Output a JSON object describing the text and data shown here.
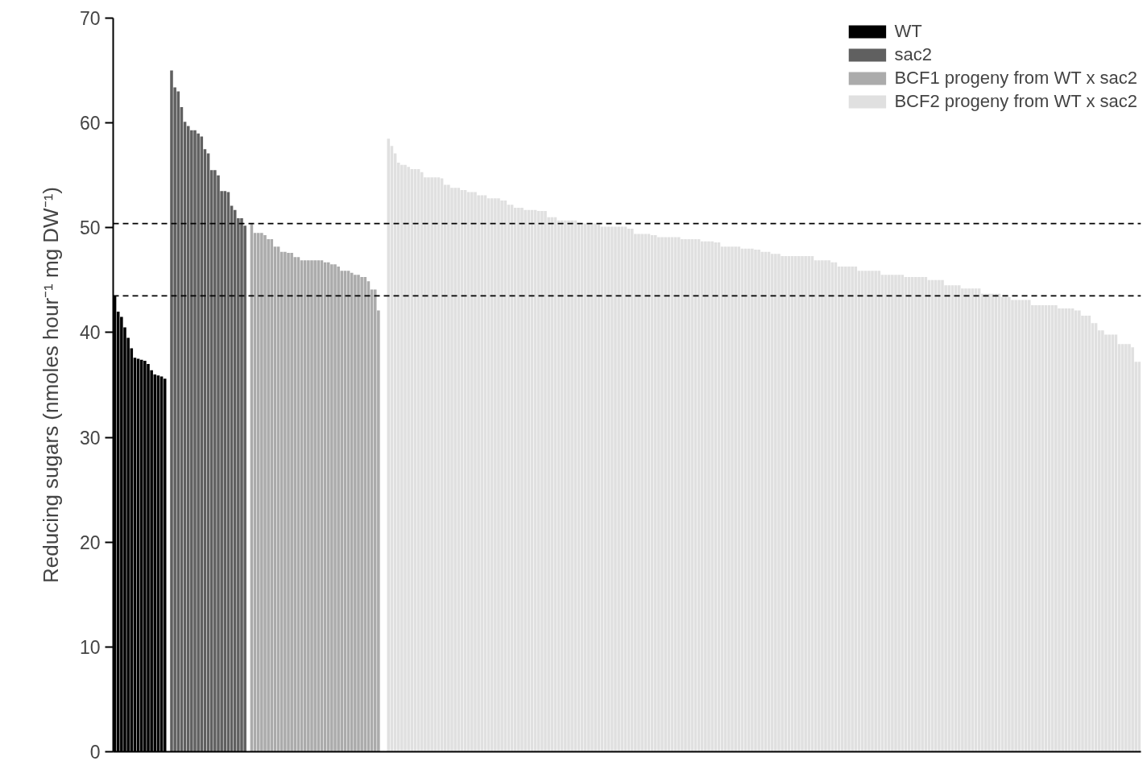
{
  "chart_data": {
    "type": "bar",
    "ylabel": "Reducing sugars (nmoles hour⁻¹ mg DW⁻¹)",
    "categories": [
      null,
      null,
      null,
      null,
      null,
      null,
      null,
      null,
      null,
      null,
      null,
      null,
      null,
      null,
      null,
      null,
      null,
      null,
      null,
      null,
      null,
      null,
      null,
      null,
      null,
      null,
      null,
      null,
      null,
      null,
      null,
      null,
      null,
      null,
      null,
      null,
      null,
      null,
      null,
      null,
      null,
      null,
      null,
      null,
      null,
      null,
      null,
      null,
      null,
      null,
      null,
      null,
      null,
      null,
      null,
      null,
      null,
      null,
      null,
      null,
      null,
      null,
      null,
      null,
      null,
      null,
      null,
      null,
      null,
      null,
      null,
      null,
      null,
      null,
      null,
      null,
      null,
      null,
      null,
      null,
      null,
      null,
      null,
      null,
      null,
      null,
      null,
      null,
      null,
      null,
      null,
      null,
      null,
      null,
      null,
      null,
      null,
      null,
      null,
      null,
      null,
      null,
      null,
      null,
      null,
      null,
      null,
      null,
      null,
      null,
      null,
      null,
      null,
      null,
      null,
      null,
      null,
      null,
      null,
      null,
      null,
      null,
      null,
      null,
      null,
      null,
      null,
      null,
      null,
      null,
      null,
      null,
      null,
      null,
      null,
      null,
      null,
      null,
      null,
      null,
      null,
      null,
      null,
      null,
      null,
      null,
      null,
      null,
      null,
      null,
      null,
      null,
      null,
      null,
      null,
      null,
      null,
      null,
      null,
      null,
      null,
      null,
      null,
      null,
      null,
      null,
      null,
      null,
      null,
      null,
      null,
      null,
      null,
      null,
      null,
      null,
      null,
      null,
      null,
      null,
      null,
      null,
      null,
      null,
      null,
      null,
      null,
      null,
      null,
      null,
      null,
      null,
      null,
      null,
      null,
      null,
      null,
      null,
      null,
      null,
      null,
      null,
      null,
      null,
      null,
      null,
      null,
      null,
      null,
      null,
      null,
      null,
      null,
      null,
      null,
      null,
      null,
      null,
      null,
      null,
      null,
      null,
      null,
      null,
      null,
      null,
      null,
      null,
      null,
      null,
      null,
      null,
      null,
      null,
      null,
      null,
      null,
      null,
      null,
      null,
      null,
      null,
      null,
      null,
      null,
      null,
      null,
      null,
      null,
      null,
      null,
      null,
      null,
      null,
      null,
      null,
      null,
      null,
      null,
      null,
      null,
      null,
      null,
      null,
      null,
      null,
      null,
      null,
      null,
      null,
      null,
      null,
      null,
      null,
      null,
      null,
      null,
      null,
      null,
      null,
      null,
      null,
      null,
      null,
      null,
      null,
      null,
      null,
      null,
      null,
      null,
      null,
      null,
      null,
      null,
      null,
      null,
      null,
      null,
      null,
      null,
      null,
      null,
      null,
      null,
      null,
      null,
      null
    ],
    "series": [
      {
        "name": "WT",
        "color": "#000000",
        "values": [
          43.5,
          42.0,
          41.5,
          40.5,
          39.5,
          38.5,
          37.6,
          37.5,
          37.4,
          37.3,
          37.0,
          36.4,
          36.0,
          35.9,
          35.8,
          35.6,
          null,
          null,
          null,
          null,
          null,
          null,
          null,
          null,
          null,
          null,
          null,
          null,
          null,
          null,
          null,
          null,
          null,
          null,
          null,
          null,
          null,
          null,
          null,
          null,
          null,
          null,
          null,
          null,
          null,
          null,
          null,
          null,
          null,
          null,
          null,
          null,
          null,
          null,
          null,
          null,
          null,
          null,
          null,
          null,
          null,
          null,
          null,
          null,
          null,
          null,
          null,
          null,
          null,
          null,
          null,
          null,
          null,
          null,
          null,
          null,
          null,
          null,
          null,
          null,
          null,
          null,
          null,
          null,
          null,
          null,
          null,
          null,
          null,
          null,
          null,
          null,
          null,
          null,
          null,
          null,
          null,
          null,
          null,
          null,
          null,
          null,
          null,
          null,
          null,
          null,
          null,
          null,
          null,
          null,
          null,
          null,
          null,
          null,
          null,
          null,
          null,
          null,
          null,
          null,
          null,
          null,
          null,
          null,
          null,
          null,
          null,
          null,
          null,
          null,
          null,
          null,
          null,
          null,
          null,
          null,
          null,
          null,
          null,
          null,
          null,
          null,
          null,
          null,
          null,
          null,
          null,
          null,
          null,
          null,
          null,
          null,
          null,
          null,
          null,
          null,
          null,
          null,
          null,
          null,
          null,
          null,
          null,
          null,
          null,
          null,
          null,
          null,
          null,
          null,
          null,
          null,
          null,
          null,
          null,
          null,
          null,
          null,
          null,
          null,
          null,
          null,
          null,
          null,
          null,
          null,
          null,
          null,
          null,
          null,
          null,
          null,
          null,
          null,
          null,
          null,
          null,
          null,
          null,
          null,
          null,
          null,
          null,
          null,
          null,
          null,
          null,
          null,
          null,
          null,
          null,
          null,
          null,
          null,
          null,
          null,
          null,
          null,
          null,
          null,
          null,
          null,
          null,
          null,
          null,
          null,
          null,
          null,
          null,
          null,
          null,
          null,
          null,
          null,
          null,
          null,
          null,
          null,
          null,
          null,
          null,
          null,
          null,
          null,
          null,
          null,
          null,
          null,
          null,
          null,
          null,
          null,
          null,
          null,
          null,
          null,
          null,
          null,
          null,
          null,
          null,
          null,
          null,
          null,
          null,
          null,
          null,
          null,
          null,
          null,
          null,
          null,
          null,
          null,
          null,
          null,
          null,
          null,
          null,
          null,
          null,
          null,
          null,
          null,
          null,
          null,
          null,
          null,
          null,
          null,
          null,
          null,
          null,
          null,
          null,
          null,
          null,
          null,
          null,
          null,
          null,
          null,
          null,
          null,
          null,
          null,
          null,
          null
        ]
      },
      {
        "name": "sac2",
        "color": "#606060",
        "values": [
          null,
          null,
          null,
          null,
          null,
          null,
          null,
          null,
          null,
          null,
          null,
          null,
          null,
          null,
          null,
          null,
          null,
          65.0,
          63.4,
          63.0,
          61.5,
          60.1,
          59.7,
          59.3,
          59.3,
          59.0,
          58.7,
          57.5,
          57.1,
          55.5,
          55.5,
          55.0,
          53.5,
          53.5,
          53.4,
          52.1,
          51.7,
          50.9,
          50.9,
          50.2,
          null,
          null,
          null,
          null,
          null,
          null,
          null,
          null,
          null,
          null,
          null,
          null,
          null,
          null,
          null,
          null,
          null,
          null,
          null,
          null,
          null,
          null,
          null,
          null,
          null,
          null,
          null,
          null,
          null,
          null,
          null,
          null,
          null,
          null,
          null,
          null,
          null,
          null,
          null,
          null,
          null,
          null,
          null,
          null,
          null,
          null,
          null,
          null,
          null,
          null,
          null,
          null,
          null,
          null,
          null,
          null,
          null,
          null,
          null,
          null,
          null,
          null,
          null,
          null,
          null,
          null,
          null,
          null,
          null,
          null,
          null,
          null,
          null,
          null,
          null,
          null,
          null,
          null,
          null,
          null,
          null,
          null,
          null,
          null,
          null,
          null,
          null,
          null,
          null,
          null,
          null,
          null,
          null,
          null,
          null,
          null,
          null,
          null,
          null,
          null,
          null,
          null,
          null,
          null,
          null,
          null,
          null,
          null,
          null,
          null,
          null,
          null,
          null,
          null,
          null,
          null,
          null,
          null,
          null,
          null,
          null,
          null,
          null,
          null,
          null,
          null,
          null,
          null,
          null,
          null,
          null,
          null,
          null,
          null,
          null,
          null,
          null,
          null,
          null,
          null,
          null,
          null,
          null,
          null,
          null,
          null,
          null,
          null,
          null,
          null,
          null,
          null,
          null,
          null,
          null,
          null,
          null,
          null,
          null,
          null,
          null,
          null,
          null,
          null,
          null,
          null,
          null,
          null,
          null,
          null,
          null,
          null,
          null,
          null,
          null,
          null,
          null,
          null,
          null,
          null,
          null,
          null,
          null,
          null,
          null,
          null,
          null,
          null,
          null,
          null,
          null,
          null,
          null,
          null,
          null,
          null,
          null,
          null,
          null,
          null,
          null,
          null,
          null,
          null,
          null,
          null,
          null,
          null,
          null,
          null,
          null,
          null,
          null,
          null,
          null,
          null,
          null,
          null,
          null,
          null,
          null,
          null,
          null,
          null,
          null,
          null,
          null,
          null,
          null,
          null,
          null,
          null,
          null,
          null,
          null,
          null,
          null,
          null,
          null,
          null,
          null,
          null,
          null,
          null,
          null,
          null,
          null,
          null,
          null,
          null,
          null,
          null,
          null,
          null,
          null,
          null,
          null,
          null,
          null,
          null,
          null,
          null,
          null,
          null,
          null,
          null,
          null,
          null
        ]
      },
      {
        "name": "BCF1 progeny from WT x sac2",
        "color": "#ababab",
        "values": [
          null,
          null,
          null,
          null,
          null,
          null,
          null,
          null,
          null,
          null,
          null,
          null,
          null,
          null,
          null,
          null,
          null,
          null,
          null,
          null,
          null,
          null,
          null,
          null,
          null,
          null,
          null,
          null,
          null,
          null,
          null,
          null,
          null,
          null,
          null,
          null,
          null,
          null,
          null,
          null,
          null,
          50.4,
          49.5,
          49.5,
          49.5,
          49.3,
          48.9,
          48.9,
          48.2,
          48.2,
          47.7,
          47.7,
          47.6,
          47.6,
          47.2,
          47.2,
          46.9,
          46.9,
          46.9,
          46.9,
          46.9,
          46.9,
          46.9,
          46.7,
          46.7,
          46.5,
          46.5,
          46.3,
          45.9,
          45.9,
          45.9,
          45.7,
          45.5,
          45.5,
          45.3,
          45.3,
          44.9,
          44.1,
          44.1,
          42.1,
          null,
          null,
          null,
          null,
          null,
          null,
          null,
          null,
          null,
          null,
          null,
          null,
          null,
          null,
          null,
          null,
          null,
          null,
          null,
          null,
          null,
          null,
          null,
          null,
          null,
          null,
          null,
          null,
          null,
          null,
          null,
          null,
          null,
          null,
          null,
          null,
          null,
          null,
          null,
          null,
          null,
          null,
          null,
          null,
          null,
          null,
          null,
          null,
          null,
          null,
          null,
          null,
          null,
          null,
          null,
          null,
          null,
          null,
          null,
          null,
          null,
          null,
          null,
          null,
          null,
          null,
          null,
          null,
          null,
          null,
          null,
          null,
          null,
          null,
          null,
          null,
          null,
          null,
          null,
          null,
          null,
          null,
          null,
          null,
          null,
          null,
          null,
          null,
          null,
          null,
          null,
          null,
          null,
          null,
          null,
          null,
          null,
          null,
          null,
          null,
          null,
          null,
          null,
          null,
          null,
          null,
          null,
          null,
          null,
          null,
          null,
          null,
          null,
          null,
          null,
          null,
          null,
          null,
          null,
          null,
          null,
          null,
          null,
          null,
          null,
          null,
          null,
          null,
          null,
          null,
          null,
          null,
          null,
          null,
          null,
          null,
          null,
          null,
          null,
          null,
          null,
          null,
          null,
          null,
          null,
          null,
          null,
          null,
          null,
          null,
          null,
          null,
          null,
          null,
          null,
          null,
          null,
          null,
          null,
          null,
          null,
          null,
          null,
          null,
          null,
          null,
          null,
          null,
          null,
          null,
          null,
          null,
          null,
          null,
          null,
          null,
          null,
          null,
          null,
          null,
          null,
          null,
          null,
          null,
          null,
          null,
          null,
          null,
          null,
          null,
          null,
          null,
          null,
          null,
          null,
          null,
          null,
          null,
          null,
          null,
          null,
          null,
          null,
          null,
          null,
          null,
          null,
          null,
          null,
          null,
          null,
          null,
          null,
          null,
          null,
          null,
          null,
          null,
          null,
          null,
          null,
          null,
          null,
          null,
          null,
          null,
          null,
          null
        ]
      },
      {
        "name": "BCF2 progeny from WT x sac2",
        "color": "#e0e0e0",
        "values": [
          null,
          null,
          null,
          null,
          null,
          null,
          null,
          null,
          null,
          null,
          null,
          null,
          null,
          null,
          null,
          null,
          null,
          null,
          null,
          null,
          null,
          null,
          null,
          null,
          null,
          null,
          null,
          null,
          null,
          null,
          null,
          null,
          null,
          null,
          null,
          null,
          null,
          null,
          null,
          null,
          null,
          null,
          null,
          null,
          null,
          null,
          null,
          null,
          null,
          null,
          null,
          null,
          null,
          null,
          null,
          null,
          null,
          null,
          null,
          null,
          null,
          null,
          null,
          null,
          null,
          null,
          null,
          null,
          null,
          null,
          null,
          null,
          null,
          null,
          null,
          null,
          null,
          null,
          null,
          null,
          null,
          null,
          58.5,
          57.8,
          57.1,
          56.2,
          56.0,
          56.0,
          55.8,
          55.6,
          55.6,
          55.6,
          55.3,
          54.8,
          54.8,
          54.8,
          54.8,
          54.8,
          54.7,
          54.1,
          54.1,
          53.8,
          53.8,
          53.8,
          53.6,
          53.6,
          53.4,
          53.4,
          53.4,
          53.1,
          53.1,
          53.1,
          52.8,
          52.8,
          52.8,
          52.8,
          52.6,
          52.6,
          52.2,
          52.2,
          51.9,
          51.9,
          51.9,
          51.7,
          51.7,
          51.7,
          51.7,
          51.6,
          51.6,
          51.6,
          51.0,
          51.0,
          51.0,
          50.7,
          50.7,
          50.7,
          50.7,
          50.7,
          50.7,
          50.4,
          50.4,
          50.4,
          50.4,
          50.4,
          50.4,
          50.4,
          50.1,
          50.1,
          50.1,
          50.1,
          50.1,
          50.1,
          50.1,
          50.1,
          49.9,
          49.9,
          49.4,
          49.4,
          49.4,
          49.4,
          49.4,
          49.3,
          49.3,
          49.1,
          49.1,
          49.1,
          49.1,
          49.1,
          49.1,
          49.1,
          48.9,
          48.9,
          48.9,
          48.9,
          48.9,
          48.9,
          48.7,
          48.7,
          48.7,
          48.7,
          48.6,
          48.6,
          48.2,
          48.2,
          48.2,
          48.2,
          48.2,
          48.2,
          48.0,
          48.0,
          48.0,
          48.0,
          47.9,
          47.9,
          47.7,
          47.7,
          47.7,
          47.5,
          47.5,
          47.5,
          47.3,
          47.3,
          47.3,
          47.3,
          47.3,
          47.3,
          47.3,
          47.3,
          47.3,
          47.3,
          46.9,
          46.9,
          46.9,
          46.9,
          46.9,
          46.7,
          46.7,
          46.3,
          46.3,
          46.3,
          46.3,
          46.3,
          46.3,
          45.9,
          45.9,
          45.9,
          45.9,
          45.9,
          45.9,
          45.9,
          45.5,
          45.5,
          45.5,
          45.5,
          45.5,
          45.5,
          45.5,
          45.3,
          45.3,
          45.3,
          45.3,
          45.3,
          45.3,
          45.3,
          45.0,
          45.0,
          45.0,
          45.0,
          45.0,
          44.5,
          44.5,
          44.5,
          44.5,
          44.5,
          44.2,
          44.2,
          44.2,
          44.2,
          44.2,
          44.2,
          43.7,
          43.7,
          43.7,
          43.7,
          43.7,
          43.7,
          43.4,
          43.4,
          43.4,
          43.1,
          43.1,
          43.1,
          43.1,
          43.1,
          43.1,
          42.6,
          42.6,
          42.6,
          42.6,
          42.6,
          42.6,
          42.6,
          42.6,
          42.3,
          42.3,
          42.3,
          42.3,
          42.3,
          42.1,
          42.1,
          41.6,
          41.6,
          41.6,
          40.9,
          40.9,
          40.2,
          40.2,
          39.8,
          39.8,
          39.8,
          39.8,
          38.9,
          38.9,
          38.9,
          38.9,
          38.6,
          37.2,
          37.2
        ]
      }
    ],
    "ylim": [
      0,
      70
    ],
    "yticks": [
      0,
      10,
      20,
      30,
      40,
      50,
      60,
      70
    ],
    "ref_lines": [
      {
        "axis": "y",
        "value": 50.4,
        "color": "#000000",
        "line_style": "dashed"
      },
      {
        "axis": "y",
        "value": 43.5,
        "color": "#000000",
        "line_style": "dashed"
      }
    ],
    "legend": "top right",
    "tick_labels": "y",
    "grid": false
  }
}
